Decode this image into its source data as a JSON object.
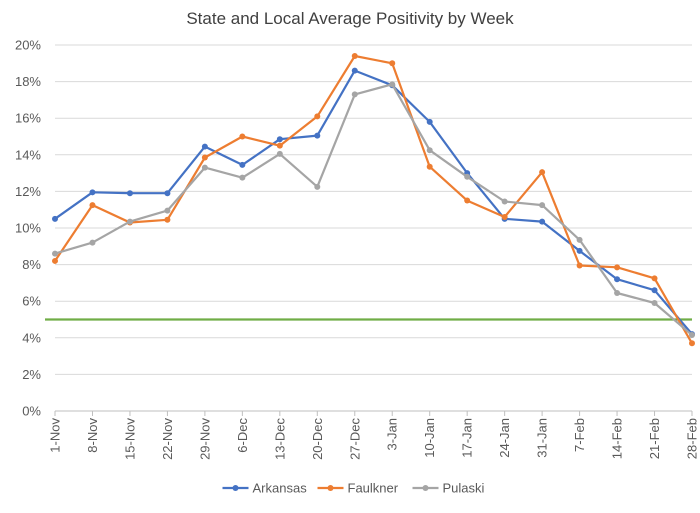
{
  "chart_data": {
    "type": "line",
    "title": "State and Local Average Positivity by Week",
    "xlabel": "",
    "ylabel": "",
    "ylim": [
      0,
      20
    ],
    "y_ticks": [
      "0%",
      "2%",
      "4%",
      "6%",
      "8%",
      "10%",
      "12%",
      "14%",
      "16%",
      "18%",
      "20%"
    ],
    "grid": true,
    "legend_position": "bottom",
    "categories": [
      "1-Nov",
      "8-Nov",
      "15-Nov",
      "22-Nov",
      "29-Nov",
      "6-Dec",
      "13-Dec",
      "20-Dec",
      "27-Dec",
      "3-Jan",
      "10-Jan",
      "17-Jan",
      "24-Jan",
      "31-Jan",
      "7-Feb",
      "14-Feb",
      "21-Feb",
      "28-Feb"
    ],
    "series": [
      {
        "name": "Arkansas",
        "color": "#4472C4",
        "values": [
          10.5,
          11.95,
          11.9,
          11.9,
          14.45,
          13.45,
          14.85,
          15.05,
          18.6,
          17.8,
          15.8,
          13.0,
          10.5,
          10.35,
          8.75,
          7.2,
          6.6,
          4.2
        ]
      },
      {
        "name": "Faulkner",
        "color": "#ED7D31",
        "values": [
          8.2,
          11.25,
          10.3,
          10.45,
          13.85,
          15.0,
          14.5,
          16.1,
          19.4,
          19.0,
          13.35,
          11.5,
          10.6,
          13.05,
          7.95,
          7.85,
          7.25,
          3.7
        ]
      },
      {
        "name": "Pulaski",
        "color": "#A5A5A5",
        "values": [
          8.6,
          9.2,
          10.35,
          10.95,
          13.3,
          12.75,
          14.05,
          12.25,
          17.3,
          17.85,
          14.25,
          12.8,
          11.45,
          11.25,
          9.35,
          6.45,
          5.9,
          4.15
        ]
      }
    ],
    "reference_line": {
      "value": 5,
      "color": "#70AD47"
    }
  }
}
